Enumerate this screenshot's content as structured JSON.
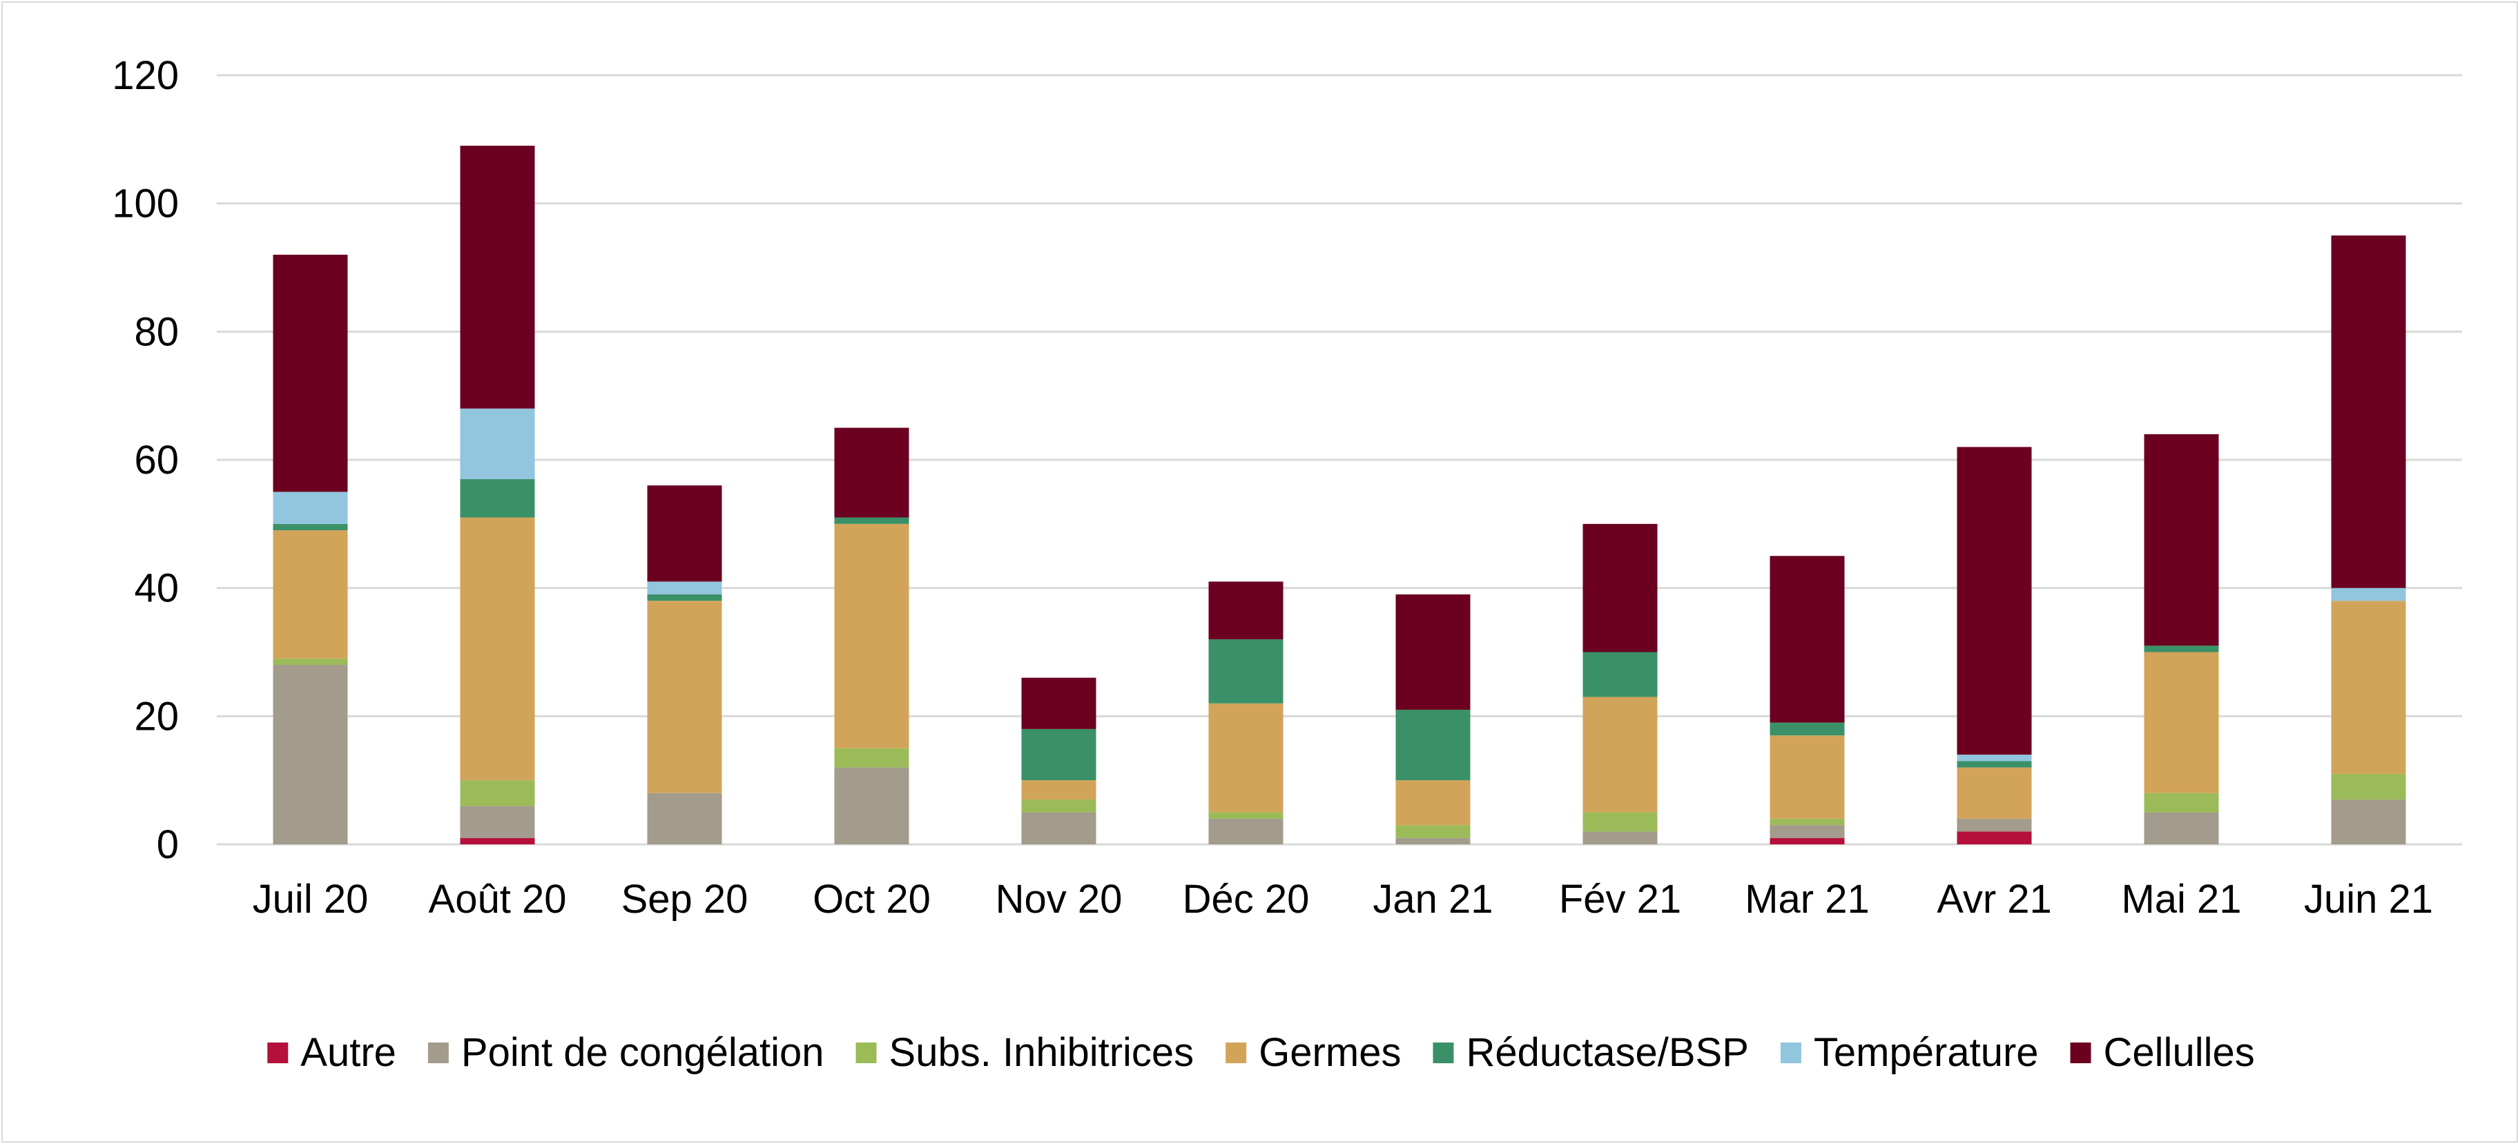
{
  "chart_data": {
    "type": "bar",
    "stacked": true,
    "title": "",
    "xlabel": "",
    "ylabel": "",
    "ylim": [
      0,
      120
    ],
    "yticks": [
      0,
      20,
      40,
      60,
      80,
      100,
      120
    ],
    "grid": true,
    "legend_position": "bottom",
    "categories": [
      "Juil 20",
      "Août 20",
      "Sep 20",
      "Oct 20",
      "Nov 20",
      "Déc 20",
      "Jan 21",
      "Fév 21",
      "Mar 21",
      "Avr 21",
      "Mai 21",
      "Juin 21"
    ],
    "series": [
      {
        "name": "Autre",
        "color": "#b5103c",
        "values": [
          0,
          1,
          0,
          0,
          0,
          0,
          0,
          0,
          1,
          2,
          0,
          0
        ]
      },
      {
        "name": "Point de congélation",
        "color": "#a39b8b",
        "values": [
          28,
          5,
          8,
          12,
          5,
          4,
          1,
          2,
          2,
          2,
          5,
          7
        ]
      },
      {
        "name": "Subs. Inhibitrices",
        "color": "#9bbb59",
        "values": [
          1,
          4,
          0,
          3,
          2,
          1,
          2,
          3,
          1,
          0,
          3,
          4
        ]
      },
      {
        "name": "Germes",
        "color": "#d2a45a",
        "values": [
          20,
          41,
          30,
          35,
          3,
          17,
          7,
          18,
          13,
          8,
          22,
          27
        ]
      },
      {
        "name": "Réductase/BSP",
        "color": "#3a9168",
        "values": [
          1,
          6,
          1,
          1,
          8,
          10,
          11,
          7,
          2,
          1,
          1,
          0
        ]
      },
      {
        "name": "Température",
        "color": "#92c5de",
        "values": [
          5,
          11,
          2,
          0,
          0,
          0,
          0,
          0,
          0,
          1,
          0,
          2
        ]
      },
      {
        "name": "Cellulles",
        "color": "#6b0020",
        "values": [
          37,
          41,
          15,
          14,
          8,
          9,
          18,
          20,
          26,
          48,
          33,
          55
        ]
      }
    ]
  }
}
